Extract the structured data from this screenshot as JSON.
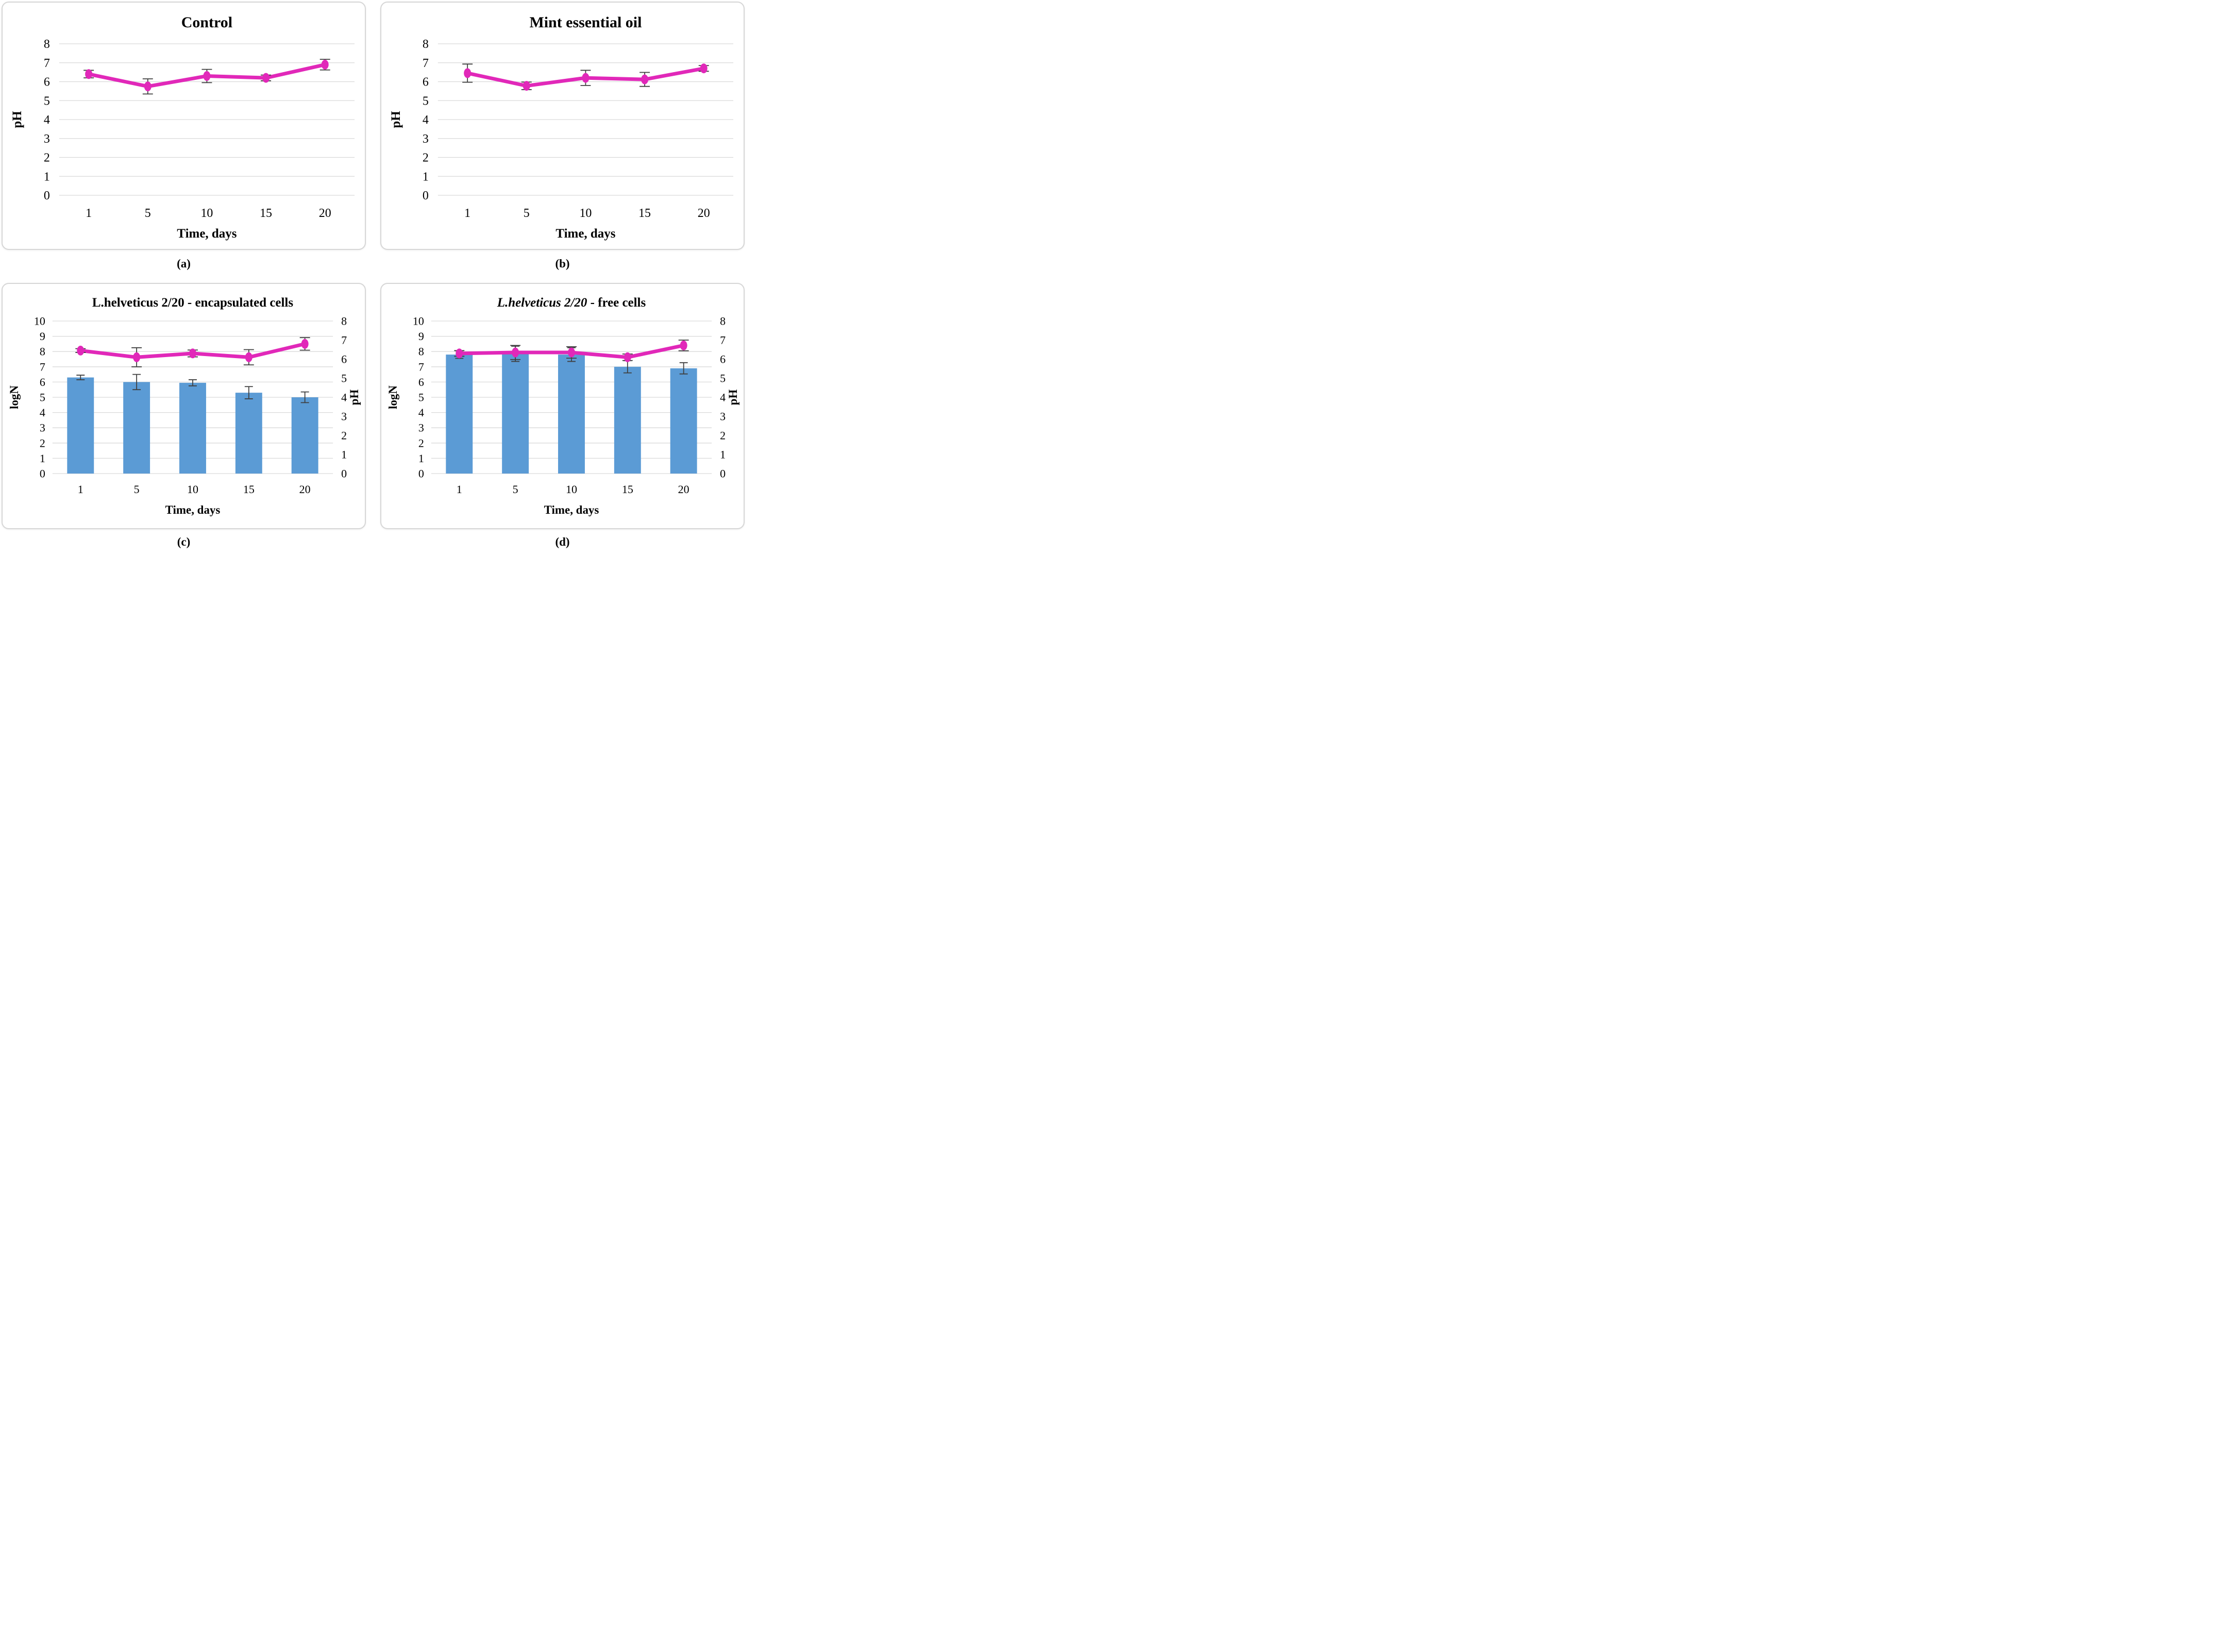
{
  "colors": {
    "line": "#e128b9",
    "bar": "#5b9bd5",
    "grid": "#d9d9d9",
    "error_bar": "#3f3f3f",
    "panel_border": "#d6d6d6",
    "text": "#000000"
  },
  "chart_data": [
    {
      "id": "a",
      "caption": "(a)",
      "type": "line",
      "title_parts": [
        {
          "text": "Control",
          "italic": false
        }
      ],
      "xlabel": "Time, days",
      "categories": [
        "1",
        "5",
        "10",
        "15",
        "20"
      ],
      "y_axis": {
        "label": "pH",
        "min": 0,
        "max": 8,
        "step": 1,
        "ticks": [
          "0",
          "1",
          "2",
          "3",
          "4",
          "5",
          "6",
          "7",
          "8"
        ]
      },
      "series": [
        {
          "name": "pH",
          "type": "line",
          "axis": "left",
          "values": [
            6.4,
            5.75,
            6.3,
            6.2,
            6.9
          ],
          "errors": [
            0.2,
            0.4,
            0.35,
            0.15,
            0.28
          ]
        }
      ]
    },
    {
      "id": "b",
      "caption": "(b)",
      "type": "line",
      "title_parts": [
        {
          "text": "Mint essential oil",
          "italic": false
        }
      ],
      "xlabel": "Time, days",
      "categories": [
        "1",
        "5",
        "10",
        "15",
        "20"
      ],
      "y_axis": {
        "label": "pH",
        "min": 0,
        "max": 8,
        "step": 1,
        "ticks": [
          "0",
          "1",
          "2",
          "3",
          "4",
          "5",
          "6",
          "7",
          "8"
        ]
      },
      "series": [
        {
          "name": "pH",
          "type": "line",
          "axis": "left",
          "values": [
            6.45,
            5.78,
            6.2,
            6.12,
            6.7
          ],
          "errors": [
            0.48,
            0.2,
            0.4,
            0.37,
            0.15
          ]
        }
      ]
    },
    {
      "id": "c",
      "caption": "(c)",
      "type": "combo",
      "title_parts": [
        {
          "text": "L.helveticus 2/20 - encapsulated cells",
          "italic": false
        }
      ],
      "xlabel": "Time, days",
      "categories": [
        "1",
        "5",
        "10",
        "15",
        "20"
      ],
      "y_left": {
        "label": "logN",
        "min": 0,
        "max": 10,
        "step": 1,
        "ticks": [
          "0",
          "1",
          "2",
          "3",
          "4",
          "5",
          "6",
          "7",
          "8",
          "9",
          "10"
        ]
      },
      "y_right": {
        "label": "pH",
        "min": 0,
        "max": 8,
        "step": 1,
        "ticks": [
          "0",
          "1",
          "2",
          "3",
          "4",
          "5",
          "6",
          "7",
          "8"
        ]
      },
      "series": [
        {
          "name": "logN",
          "type": "bar",
          "axis": "left",
          "values": [
            6.3,
            6.0,
            5.95,
            5.3,
            5.0
          ],
          "errors": [
            0.15,
            0.5,
            0.2,
            0.4,
            0.35
          ]
        },
        {
          "name": "pH",
          "type": "line",
          "axis": "right",
          "values": [
            6.45,
            6.1,
            6.3,
            6.1,
            6.8
          ],
          "errors": [
            0.1,
            0.5,
            0.18,
            0.4,
            0.33
          ]
        }
      ]
    },
    {
      "id": "d",
      "caption": "(d)",
      "type": "combo",
      "title_parts": [
        {
          "text": "L.helveticus 2/20",
          "italic": true
        },
        {
          "text": " - free cells",
          "italic": false
        }
      ],
      "xlabel": "Time, days",
      "categories": [
        "1",
        "5",
        "10",
        "15",
        "20"
      ],
      "y_left": {
        "label": "logN",
        "min": 0,
        "max": 10,
        "step": 1,
        "ticks": [
          "0",
          "1",
          "2",
          "3",
          "4",
          "5",
          "6",
          "7",
          "8",
          "9",
          "10"
        ]
      },
      "y_right": {
        "label": "pH",
        "min": 0,
        "max": 8,
        "step": 1,
        "ticks": [
          "0",
          "1",
          "2",
          "3",
          "4",
          "5",
          "6",
          "7",
          "8"
        ]
      },
      "series": [
        {
          "name": "logN",
          "type": "bar",
          "axis": "left",
          "values": [
            7.8,
            7.85,
            7.8,
            7.0,
            6.9
          ],
          "errors": [
            0.25,
            0.5,
            0.45,
            0.4,
            0.37
          ]
        },
        {
          "name": "pH",
          "type": "line",
          "axis": "right",
          "values": [
            6.3,
            6.35,
            6.35,
            6.1,
            6.72
          ],
          "errors": [
            0.15,
            0.37,
            0.3,
            0.17,
            0.28
          ]
        }
      ]
    }
  ]
}
